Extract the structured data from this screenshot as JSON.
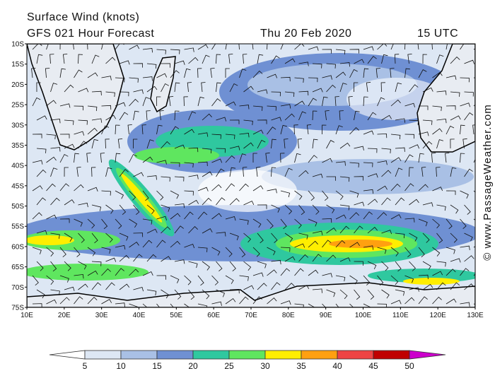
{
  "header": {
    "title": "Surface Wind (knots)",
    "forecast": "GFS 021 Hour Forecast",
    "date": "Thu 20 Feb 2020",
    "time": "15 UTC"
  },
  "map": {
    "lat_labels": [
      "10S",
      "15S",
      "20S",
      "25S",
      "30S",
      "35S",
      "40S",
      "45S",
      "50S",
      "55S",
      "60S",
      "65S",
      "70S",
      "75S"
    ],
    "lon_labels": [
      "10E",
      "20E",
      "30E",
      "40E",
      "50E",
      "60E",
      "70E",
      "80E",
      "90E",
      "100E",
      "110E",
      "120E",
      "130E"
    ],
    "watermark": "© www.PassageWeather.com"
  },
  "colorbar": {
    "labels": [
      5,
      10,
      15,
      20,
      25,
      30,
      35,
      40,
      45,
      50
    ],
    "colors": [
      "#ffffff",
      "#dde7f4",
      "#a9c0e5",
      "#6f90d3",
      "#2fc89f",
      "#5fe65f",
      "#ffee00",
      "#ffa010",
      "#ee4444",
      "#c00000",
      "#cc00cc"
    ]
  }
}
